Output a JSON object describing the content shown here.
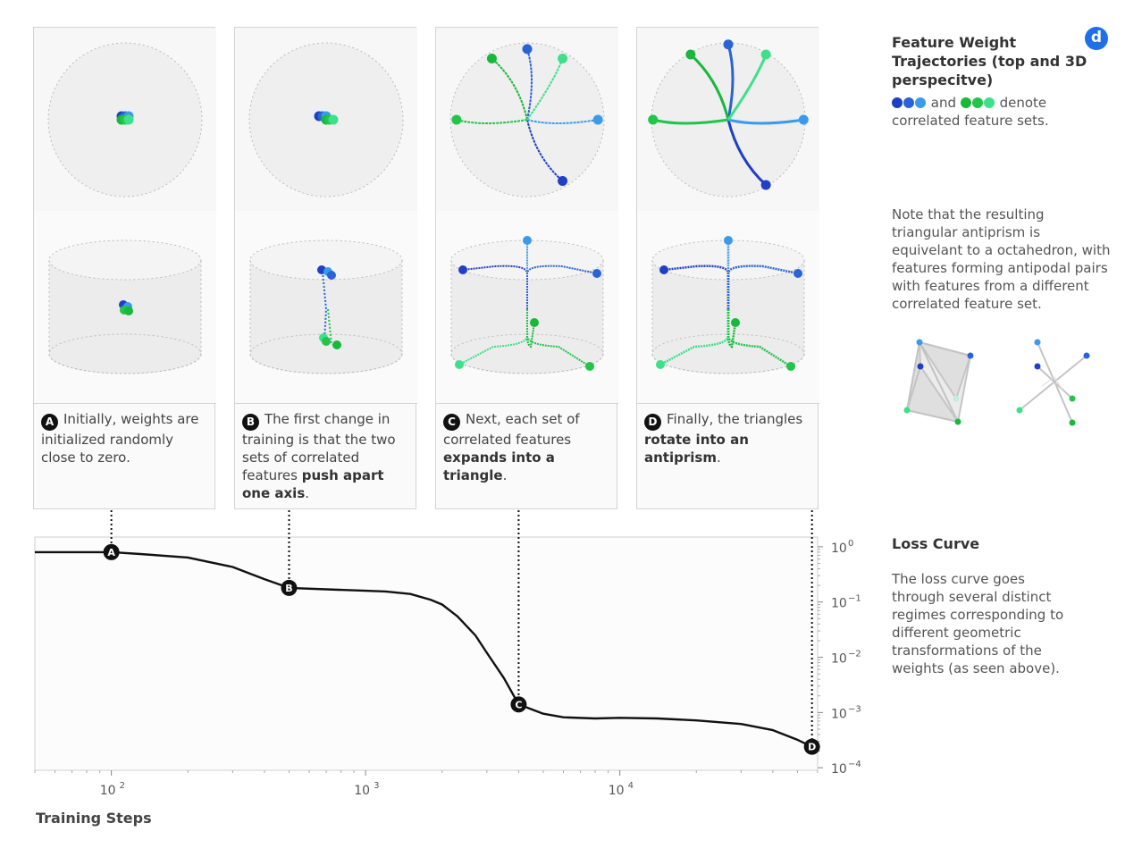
{
  "panels": [
    {
      "letter": "A",
      "text_plain": "Initially, weights are initialized randomly close to zero.",
      "text_bold": "",
      "text_after": ""
    },
    {
      "letter": "B",
      "text_plain": "The first change in training is that the two sets of correlated features ",
      "text_bold": "push apart one axis",
      "text_after": "."
    },
    {
      "letter": "C",
      "text_plain": "Next, each set of correlated features ",
      "text_bold": "expands into a triangle",
      "text_after": "."
    },
    {
      "letter": "D",
      "text_plain": "Finally, the triangles ",
      "text_bold": "rotate into an antiprism",
      "text_after": "."
    }
  ],
  "sidebar": {
    "title": "Feature Weight Trajectories (top and 3D perspecitve)",
    "legend_and": "and",
    "legend_text": "denote correlated feature sets.",
    "note": "Note that the resulting triangular antiprism is equivelant to a octahedron, with features forming antipodal pairs with features from a different correlated feature set.",
    "loss_title": "Loss Curve",
    "loss_text": "The loss curve goes through several distinct regimes corresponding to different geometric transformations of the weights (as seen above)."
  },
  "logo_letter": "d",
  "colors": {
    "blue_dark": "#1f3fc4",
    "blue_mid": "#2a63d6",
    "blue_light": "#3b9aec",
    "green_dark": "#18b83a",
    "green_mid": "#22c44a",
    "green_light": "#3ee08a",
    "curve": "#111111"
  },
  "chart_data": {
    "type": "line",
    "title": "Loss Curve",
    "xlabel": "Training Steps",
    "ylabel": "",
    "x_scale": "log",
    "y_scale": "log",
    "xlim": [
      50,
      60000
    ],
    "ylim": [
      9e-05,
      1.5
    ],
    "x_ticks": [
      {
        "v": 100,
        "label": "10",
        "exp": "2"
      },
      {
        "v": 1000,
        "label": "10",
        "exp": "3"
      },
      {
        "v": 10000,
        "label": "10",
        "exp": "4"
      }
    ],
    "y_ticks": [
      {
        "v": 1,
        "label": "10",
        "exp": "0"
      },
      {
        "v": 0.1,
        "label": "10",
        "exp": "−1"
      },
      {
        "v": 0.01,
        "label": "10",
        "exp": "−2"
      },
      {
        "v": 0.001,
        "label": "10",
        "exp": "−3"
      },
      {
        "v": 0.0001,
        "label": "10",
        "exp": "−4"
      }
    ],
    "series": [
      {
        "x": [
          50,
          80,
          100,
          130,
          200,
          300,
          400,
          500,
          700,
          1000,
          1200,
          1500,
          1800,
          2000,
          2300,
          2700,
          3000,
          3500,
          4000,
          5000,
          6000,
          8000,
          10000,
          14000,
          20000,
          30000,
          40000,
          50000,
          57000
        ],
        "y": [
          0.8,
          0.8,
          0.8,
          0.74,
          0.64,
          0.43,
          0.26,
          0.18,
          0.17,
          0.16,
          0.155,
          0.14,
          0.11,
          0.09,
          0.055,
          0.025,
          0.012,
          0.0042,
          0.0014,
          0.00095,
          0.00082,
          0.00078,
          0.0008,
          0.00078,
          0.00072,
          0.00062,
          0.00048,
          0.00032,
          0.00024
        ]
      }
    ],
    "annotations": [
      {
        "label": "A",
        "x": 100,
        "y": 0.8
      },
      {
        "label": "B",
        "x": 500,
        "y": 0.18
      },
      {
        "label": "C",
        "x": 4000,
        "y": 0.0014
      },
      {
        "label": "D",
        "x": 57000,
        "y": 0.00024
      }
    ]
  }
}
